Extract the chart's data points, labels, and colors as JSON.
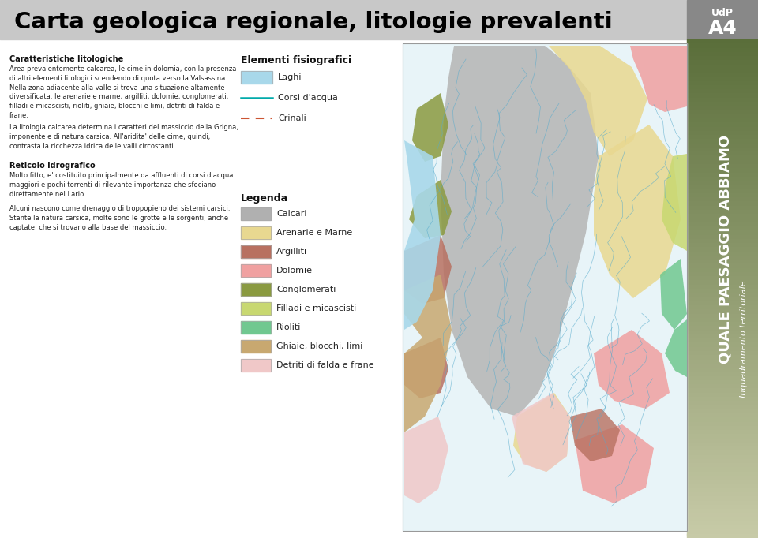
{
  "title": "Carta geologica regionale, litologie prevalenti",
  "title_bg": "#c8c8c8",
  "title_color": "#000000",
  "title_fontsize": 22,
  "page_bg": "#ffffff",
  "udp_bg": "#888888",
  "udp_text": "UdP",
  "udp_a4": "A4",
  "sidebar_color_top": "#5a6e3a",
  "sidebar_color_bottom": "#c8cba8",
  "sidebar_text1": "QUALE PAESAGGIO ABBIAMO",
  "sidebar_text2": "Inquadramento territoriale",
  "left_col_title1": "Caratteristiche litologiche",
  "left_col_body1": "Area prevalentemente calcarea, le cime in dolomia, con la presenza\ndi altri elementi litologici scendendo di quota verso la Valsassina.\nNella zona adiacente alla valle si trova una situazione altamente\ndiversificata: le arenarie e marne, argilliti, dolomie, conglomerati,\nfilladi e micascisti, rioliti, ghiaie, blocchi e limi, detriti di falda e\nfrane.",
  "left_col_body2": "La litologia calcarea determina i caratteri del massiccio della Grigna,\nimponente e di natura carsica. All'aridita' delle cime, quindi,\ncontrasta la ricchezza idrica delle valli circostanti.",
  "left_col_title2": "Reticolo idrografico",
  "left_col_body3": "Molto fitto, e' costituito principalmente da affluenti di corsi d'acqua\nmaggiori e pochi torrenti di rilevante importanza che sfociano\ndirettamente nel Lario.",
  "left_col_body4": "Alcuni nascono come drenaggio di troppopieno dei sistemi carsici.\nStante la natura carsica, molte sono le grotte e le sorgenti, anche\ncaptate, che si trovano alla base del massiccio.",
  "elementi_title": "Elementi fisiografici",
  "laghi_label": "Laghi",
  "laghi_color": "#a8d8ea",
  "corsi_label": "Corsi d'acqua",
  "corsi_color": "#00aaaa",
  "crinali_label": "Crinali",
  "crinali_color": "#cc5533",
  "legenda_title": "Legenda",
  "legend_items": [
    {
      "label": "Calcari",
      "color": "#b0b0b0"
    },
    {
      "label": "Arenarie e Marne",
      "color": "#e8d890"
    },
    {
      "label": "Argilliti",
      "color": "#b87060"
    },
    {
      "label": "Dolomie",
      "color": "#f0a0a0"
    },
    {
      "label": "Conglomerati",
      "color": "#8a9a40"
    },
    {
      "label": "Filladi e micascisti",
      "color": "#c8d870"
    },
    {
      "label": "Rioliti",
      "color": "#70c890"
    },
    {
      "label": "Ghiaie, blocchi, limi",
      "color": "#c8a870"
    },
    {
      "label": "Detriti di falda e frane",
      "color": "#f0c8c8"
    }
  ],
  "map_bg": "#e8f4f8"
}
